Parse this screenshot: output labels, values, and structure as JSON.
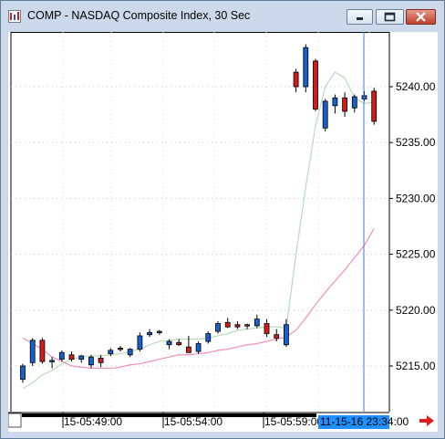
{
  "window": {
    "title": "COMP - NASDAQ Composite Index, 30 Sec"
  },
  "icons": {
    "app": "bar-chart-icon",
    "minimize": "minimize-icon",
    "maximize": "maximize-icon",
    "close": "close-icon",
    "scroll_right": "arrow-right-icon"
  },
  "colors": {
    "up_candle": "#1a5fd0",
    "down_candle": "#d41a1a",
    "ma_fast": "#b8dbb8",
    "ma_slow": "#f28fb8",
    "crosshair": "#3c78d8",
    "time_cursor_bg": "#1e90ff",
    "arrow": "#e02020"
  },
  "chart_data": {
    "type": "candlestick",
    "title": "COMP - NASDAQ Composite Index, 30 Sec",
    "ylim": [
      5212,
      5244
    ],
    "y_ticks": [
      "5215.00",
      "5220.00",
      "5225.00",
      "5230.00",
      "5235.00",
      "5240.00"
    ],
    "x_ticks": [
      "15-05:49:00",
      "15-05:54:00",
      "15-05:59:00"
    ],
    "time_cursor": "11-15-16 23:34:00",
    "grid": true,
    "candles": [
      {
        "o": 5213.8,
        "h": 5215.2,
        "l": 5213.5,
        "c": 5215.0
      },
      {
        "o": 5215.3,
        "h": 5217.5,
        "l": 5215.0,
        "c": 5217.3
      },
      {
        "o": 5217.3,
        "h": 5217.5,
        "l": 5215.2,
        "c": 5215.4
      },
      {
        "o": 5215.4,
        "h": 5215.8,
        "l": 5214.8,
        "c": 5215.5
      },
      {
        "o": 5215.6,
        "h": 5216.4,
        "l": 5215.4,
        "c": 5216.2
      },
      {
        "o": 5216.0,
        "h": 5216.3,
        "l": 5215.4,
        "c": 5215.6
      },
      {
        "o": 5215.6,
        "h": 5216.0,
        "l": 5215.3,
        "c": 5215.9
      },
      {
        "o": 5215.1,
        "h": 5216.0,
        "l": 5214.8,
        "c": 5215.8
      },
      {
        "o": 5215.7,
        "h": 5216.0,
        "l": 5214.9,
        "c": 5215.3
      },
      {
        "o": 5216.1,
        "h": 5216.6,
        "l": 5215.9,
        "c": 5216.4
      },
      {
        "o": 5216.6,
        "h": 5216.8,
        "l": 5216.3,
        "c": 5216.5
      },
      {
        "o": 5216.0,
        "h": 5216.6,
        "l": 5215.8,
        "c": 5216.5
      },
      {
        "o": 5216.5,
        "h": 5218.0,
        "l": 5216.3,
        "c": 5217.7
      },
      {
        "o": 5217.8,
        "h": 5218.3,
        "l": 5217.6,
        "c": 5218.0
      },
      {
        "o": 5218.0,
        "h": 5218.2,
        "l": 5217.8,
        "c": 5218.1
      },
      {
        "o": 5216.9,
        "h": 5217.4,
        "l": 5216.5,
        "c": 5217.2
      },
      {
        "o": 5217.1,
        "h": 5217.4,
        "l": 5216.8,
        "c": 5216.9
      },
      {
        "o": 5216.7,
        "h": 5217.7,
        "l": 5216.3,
        "c": 5216.2
      },
      {
        "o": 5216.3,
        "h": 5217.2,
        "l": 5216.1,
        "c": 5217.0
      },
      {
        "o": 5217.2,
        "h": 5218.1,
        "l": 5217.0,
        "c": 5217.9
      },
      {
        "o": 5218.1,
        "h": 5219.0,
        "l": 5217.9,
        "c": 5218.8
      },
      {
        "o": 5218.9,
        "h": 5219.3,
        "l": 5218.4,
        "c": 5218.5
      },
      {
        "o": 5218.7,
        "h": 5219.0,
        "l": 5218.3,
        "c": 5218.5
      },
      {
        "o": 5218.7,
        "h": 5218.8,
        "l": 5218.3,
        "c": 5218.6
      },
      {
        "o": 5218.6,
        "h": 5219.6,
        "l": 5218.4,
        "c": 5219.2
      },
      {
        "o": 5218.8,
        "h": 5219.2,
        "l": 5217.6,
        "c": 5217.9
      },
      {
        "o": 5217.8,
        "h": 5218.3,
        "l": 5217.2,
        "c": 5217.5
      },
      {
        "o": 5216.9,
        "h": 5219.2,
        "l": 5216.7,
        "c": 5218.7
      },
      {
        "o": 5241.3,
        "h": 5241.6,
        "l": 5239.5,
        "c": 5240.0
      },
      {
        "o": 5240.0,
        "h": 5243.8,
        "l": 5239.5,
        "c": 5243.5
      },
      {
        "o": 5242.3,
        "h": 5242.5,
        "l": 5237.8,
        "c": 5238.0
      },
      {
        "o": 5236.3,
        "h": 5238.9,
        "l": 5236.0,
        "c": 5238.7
      },
      {
        "o": 5238.3,
        "h": 5239.3,
        "l": 5237.6,
        "c": 5239.0
      },
      {
        "o": 5239.0,
        "h": 5239.5,
        "l": 5237.3,
        "c": 5237.8
      },
      {
        "o": 5238.1,
        "h": 5239.3,
        "l": 5237.7,
        "c": 5239.1
      },
      {
        "o": 5238.9,
        "h": 5239.6,
        "l": 5238.7,
        "c": 5239.2
      },
      {
        "o": 5239.6,
        "h": 5239.9,
        "l": 5236.6,
        "c": 5236.9
      }
    ],
    "series": [
      {
        "values": [
          5213.0,
          5213.5,
          5214.2,
          5214.6,
          5215.2,
          5215.6,
          5215.8,
          5215.9,
          5215.9,
          5216.0,
          5216.1,
          5216.3,
          5216.5,
          5216.9,
          5217.2,
          5217.3,
          5217.4,
          5217.4,
          5217.4,
          5217.5,
          5217.7,
          5217.9,
          5218.2,
          5218.3,
          5218.4,
          5218.5,
          5218.5,
          5218.4,
          5225.0,
          5231.0,
          5236.5,
          5240.0,
          5241.3,
          5240.8,
          5239.0,
          5238.5,
          5238.6
        ]
      },
      {
        "values": [
          5217.5,
          5217.0,
          5216.5,
          5215.8,
          5215.4,
          5215.0,
          5214.9,
          5214.8,
          5214.8,
          5214.8,
          5214.9,
          5215.1,
          5215.2,
          5215.4,
          5215.6,
          5215.8,
          5216.0,
          5216.0,
          5216.1,
          5216.2,
          5216.4,
          5216.5,
          5216.7,
          5216.9,
          5217.0,
          5217.2,
          5217.4,
          5217.6,
          5218.2,
          5219.3,
          5220.5,
          5221.6,
          5222.6,
          5223.6,
          5224.7,
          5225.8,
          5227.3
        ]
      }
    ]
  }
}
